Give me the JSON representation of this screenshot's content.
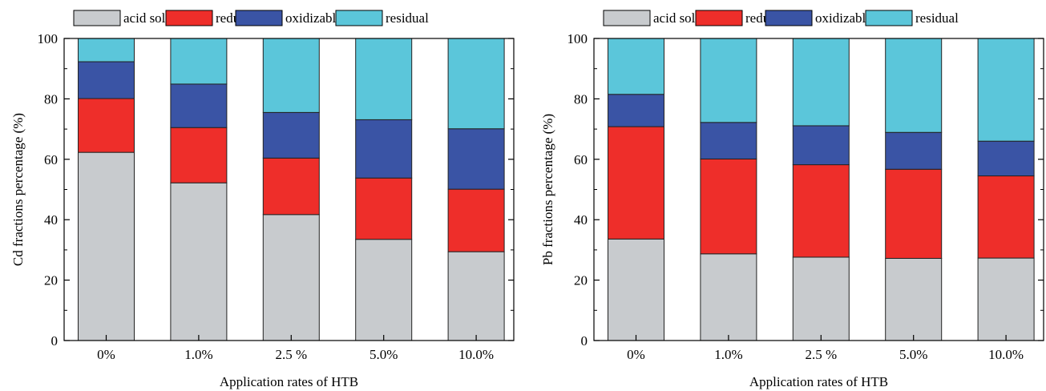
{
  "chart_data": [
    {
      "type": "bar",
      "stacked": true,
      "categories": [
        "0%",
        "1.0%",
        "2.5 %",
        "5.0%",
        "10.0%"
      ],
      "xlabel": "Application rates of HTB",
      "ylabel": "Cd fractions percentage (%)",
      "ylim": [
        0,
        100
      ],
      "yticks": [
        "0",
        "20",
        "40",
        "60",
        "80",
        "100"
      ],
      "grid": false,
      "legend_position": "top",
      "series": [
        {
          "name": "acid soluble",
          "color": "#c8cbce",
          "values": [
            62.3,
            52.2,
            41.7,
            33.5,
            29.4
          ]
        },
        {
          "name": "reducible",
          "color": "#ee2e2a",
          "values": [
            17.8,
            18.3,
            18.7,
            20.3,
            20.7
          ]
        },
        {
          "name": "oxidizable",
          "color": "#3a54a5",
          "values": [
            12.2,
            14.4,
            15.1,
            19.3,
            20.0
          ]
        },
        {
          "name": "residual",
          "color": "#5bc6da",
          "values": [
            7.7,
            15.1,
            24.5,
            26.9,
            29.9
          ]
        }
      ]
    },
    {
      "type": "bar",
      "stacked": true,
      "categories": [
        "0%",
        "1.0%",
        "2.5 %",
        "5.0%",
        "10.0%"
      ],
      "xlabel": "Application rates of HTB",
      "ylabel": "Pb fractions percentage (%)",
      "ylim": [
        0,
        100
      ],
      "yticks": [
        "0",
        "20",
        "40",
        "60",
        "80",
        "100"
      ],
      "grid": false,
      "legend_position": "top",
      "series": [
        {
          "name": "acid soluble",
          "color": "#c8cbce",
          "values": [
            33.6,
            28.7,
            27.6,
            27.2,
            27.3
          ]
        },
        {
          "name": "reducible",
          "color": "#ee2e2a",
          "values": [
            37.2,
            31.4,
            30.6,
            29.5,
            27.2
          ]
        },
        {
          "name": "oxidizable",
          "color": "#3a54a5",
          "values": [
            10.7,
            12.1,
            12.9,
            12.2,
            11.5
          ]
        },
        {
          "name": "residual",
          "color": "#5bc6da",
          "values": [
            18.5,
            27.8,
            28.9,
            31.1,
            34.0
          ]
        }
      ]
    }
  ]
}
